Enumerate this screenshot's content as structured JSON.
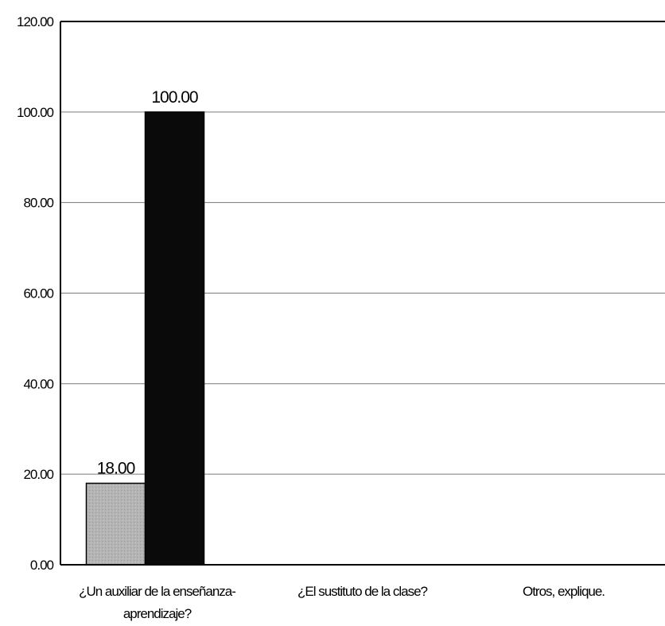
{
  "chart_data": {
    "type": "bar",
    "title": "",
    "xlabel": "",
    "ylabel": "",
    "ylim": [
      0,
      120
    ],
    "yticks": [
      "0.00",
      "20.00",
      "40.00",
      "60.00",
      "80.00",
      "100.00",
      "120.00"
    ],
    "grid": true,
    "legend": "none",
    "categories": [
      [
        "¿Un auxiliar de la enseñanza-",
        "aprendizaje?"
      ],
      [
        "¿El sustituto de la clase?"
      ],
      [
        "Otros, explique."
      ]
    ],
    "series": [
      {
        "values": [
          18,
          0,
          0
        ],
        "labels": [
          "18.00",
          "",
          ""
        ],
        "color": "#b4b4b4"
      },
      {
        "values": [
          100,
          0,
          0
        ],
        "labels": [
          "100.00",
          "",
          ""
        ],
        "color": "#0a0a0a"
      }
    ]
  }
}
